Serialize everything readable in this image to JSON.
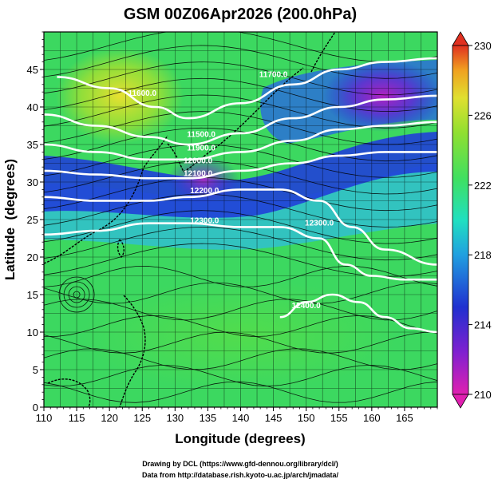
{
  "chart_data": {
    "type": "heatmap",
    "title": "GSM 00Z06Apr2026 (200.0hPa)",
    "xlabel": "Longitude (degrees)",
    "ylabel": "Latitude  (degrees)",
    "xlim": [
      110,
      170
    ],
    "ylim": [
      0,
      50
    ],
    "xticks": [
      110,
      115,
      120,
      125,
      130,
      135,
      140,
      145,
      150,
      155,
      160,
      165
    ],
    "yticks": [
      0,
      5,
      10,
      15,
      20,
      25,
      30,
      35,
      40,
      45
    ],
    "colorbar": {
      "min": 210,
      "max": 230,
      "ticks": [
        210,
        214,
        218,
        222,
        226,
        230
      ],
      "colors": [
        "#e020b0",
        "#7020d0",
        "#2030d0",
        "#20a0e0",
        "#20e0c0",
        "#40e060",
        "#90e030",
        "#e0e030",
        "#f0a020",
        "#e03020"
      ],
      "position": "right"
    },
    "contours": [
      {
        "label": "11500.0",
        "points": [
          [
            112,
            44
          ],
          [
            120,
            42.5
          ],
          [
            127,
            40
          ],
          [
            132,
            38.5
          ],
          [
            140,
            40.5
          ],
          [
            148,
            43
          ],
          [
            155,
            45
          ],
          [
            162,
            46
          ],
          [
            170,
            46.5
          ]
        ]
      },
      {
        "label": "11900.0",
        "points": [
          [
            110,
            39
          ],
          [
            118,
            37.5
          ],
          [
            126,
            36
          ],
          [
            132,
            35
          ],
          [
            140,
            36.5
          ],
          [
            148,
            38.5
          ],
          [
            155,
            40
          ],
          [
            162,
            41
          ],
          [
            170,
            41.5
          ]
        ]
      },
      {
        "label": "12000.0",
        "points": [
          [
            110,
            35
          ],
          [
            118,
            34
          ],
          [
            126,
            33
          ],
          [
            132,
            33
          ],
          [
            140,
            34
          ],
          [
            148,
            35.5
          ],
          [
            155,
            37
          ],
          [
            162,
            37.5
          ],
          [
            170,
            38
          ]
        ]
      },
      {
        "label": "12100.0",
        "points": [
          [
            110,
            31.5
          ],
          [
            118,
            31
          ],
          [
            126,
            30.5
          ],
          [
            132,
            30.5
          ],
          [
            140,
            31.5
          ],
          [
            148,
            32.5
          ],
          [
            155,
            33.5
          ],
          [
            162,
            34
          ],
          [
            170,
            34
          ]
        ]
      },
      {
        "label": "12200.0",
        "points": [
          [
            110,
            28
          ],
          [
            118,
            27.5
          ],
          [
            126,
            27.5
          ],
          [
            132,
            28
          ],
          [
            140,
            29
          ],
          [
            146,
            29
          ],
          [
            152,
            27.5
          ],
          [
            157,
            24
          ],
          [
            162,
            21
          ],
          [
            170,
            19
          ]
        ]
      },
      {
        "label": "12300.0",
        "points": [
          [
            110,
            23
          ],
          [
            118,
            23.5
          ],
          [
            126,
            24.5
          ],
          [
            132,
            24.5
          ],
          [
            140,
            24
          ],
          [
            146,
            24
          ],
          [
            152,
            22.5
          ],
          [
            156,
            19
          ],
          [
            160,
            17.5
          ],
          [
            165,
            17
          ],
          [
            170,
            17
          ]
        ]
      },
      {
        "label": "12400.0",
        "points": [
          [
            146,
            12
          ],
          [
            150,
            14
          ],
          [
            154,
            15
          ],
          [
            158,
            14
          ],
          [
            162,
            12
          ],
          [
            166,
            10.5
          ],
          [
            170,
            10
          ]
        ]
      }
    ],
    "contour_labels": [
      {
        "text": "11500.0",
        "lon": 134,
        "lat": 36
      },
      {
        "text": "11900.0",
        "lon": 134,
        "lat": 34.2
      },
      {
        "text": "12000.0",
        "lon": 133.5,
        "lat": 32.5
      },
      {
        "text": "12100.0",
        "lon": 133.5,
        "lat": 30.8
      },
      {
        "text": "12200.0",
        "lon": 134.5,
        "lat": 28.5
      },
      {
        "text": "12300.0",
        "lon": 134.5,
        "lat": 24.5
      },
      {
        "text": "12300.0",
        "lon": 152,
        "lat": 24.2
      },
      {
        "text": "12400.0",
        "lon": 150,
        "lat": 13.2
      },
      {
        "text": "11600.0",
        "lon": 125,
        "lat": 41.5
      },
      {
        "text": "11700.0",
        "lon": 145,
        "lat": 44
      }
    ]
  },
  "footer": {
    "credit_line1": "Drawing by DCL (https://www.gfd-dennou.org/library/dcl/)",
    "credit_line2": "Data from http://database.rish.kyoto-u.ac.jp/arch/jmadata/"
  }
}
